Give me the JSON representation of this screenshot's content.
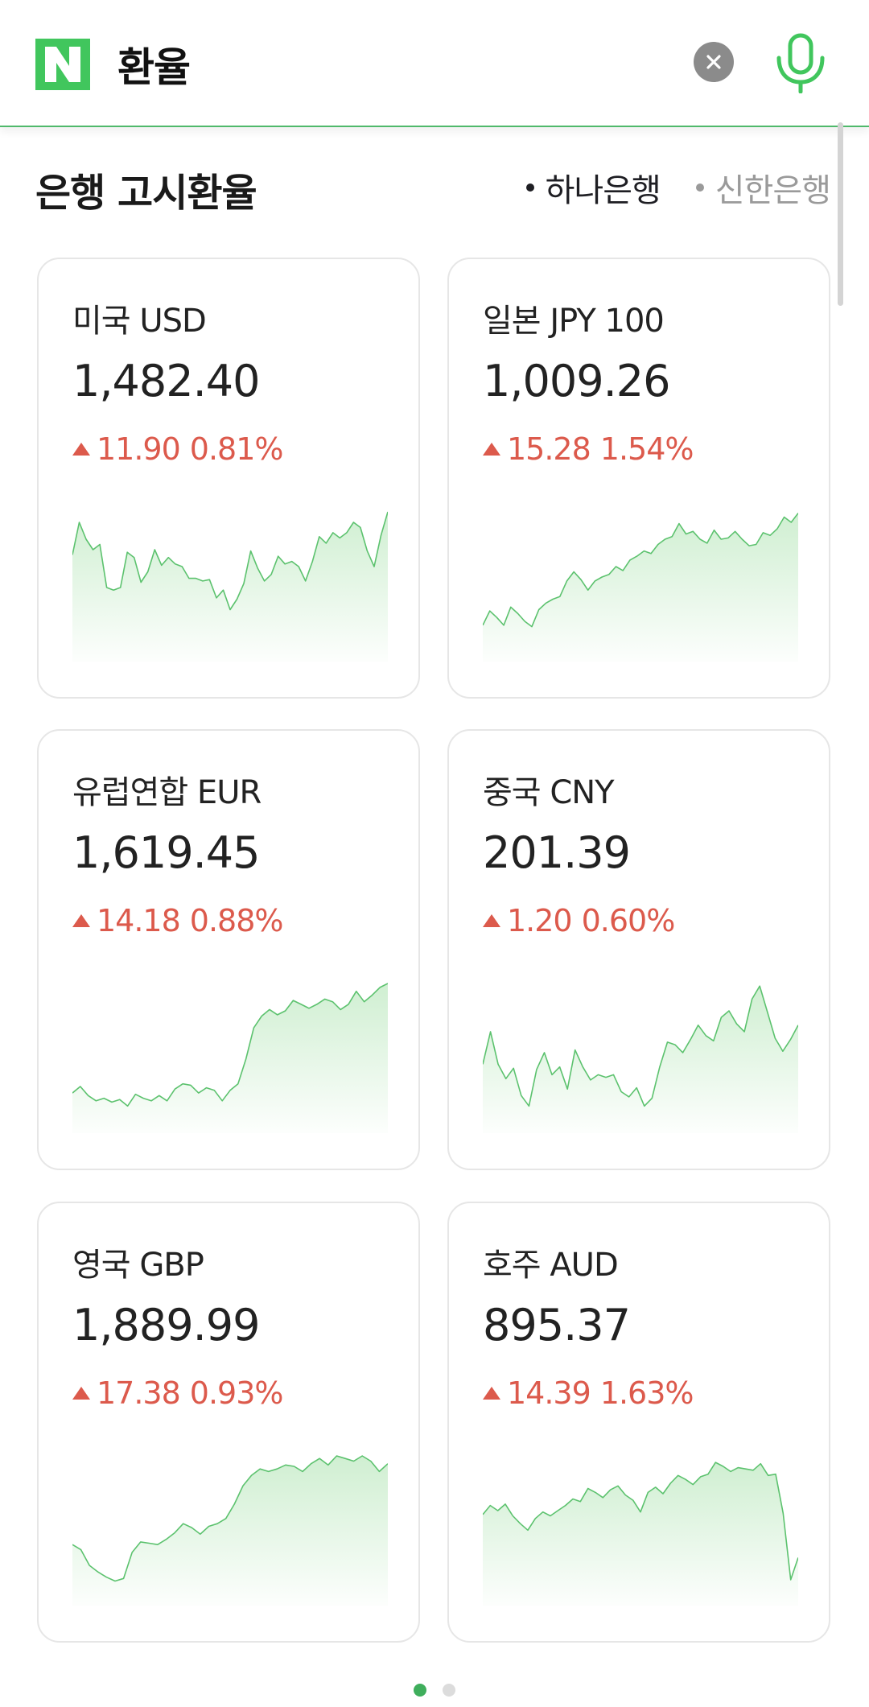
{
  "header": {
    "query": "환율",
    "logo_letter": "N",
    "brand_color": "#41c65d"
  },
  "section": {
    "title": "은행 고시환율",
    "banks": [
      {
        "label": "하나은행",
        "active": true
      },
      {
        "label": "신한은행",
        "active": false
      }
    ]
  },
  "colors": {
    "up": "#dc5a4c",
    "spark_line": "#5cc26e",
    "spark_fill": "#cdeecf"
  },
  "cards": [
    {
      "currency": "미국 USD",
      "rate": "1,482.40",
      "change": "11.90",
      "change_pct": "0.81%",
      "direction": "up",
      "trend": [
        0.67,
        0.92,
        0.79,
        0.71,
        0.75,
        0.42,
        0.4,
        0.42,
        0.69,
        0.65,
        0.46,
        0.54,
        0.71,
        0.59,
        0.65,
        0.6,
        0.58,
        0.49,
        0.49,
        0.47,
        0.48,
        0.34,
        0.4,
        0.25,
        0.33,
        0.45,
        0.7,
        0.57,
        0.47,
        0.52,
        0.66,
        0.6,
        0.62,
        0.58,
        0.47,
        0.62,
        0.81,
        0.76,
        0.84,
        0.8,
        0.84,
        0.92,
        0.88,
        0.7,
        0.58,
        0.82,
        1.0
      ]
    },
    {
      "currency": "일본 JPY 100",
      "rate": "1,009.26",
      "change": "15.28",
      "change_pct": "1.54%",
      "direction": "up",
      "trend": [
        0.13,
        0.24,
        0.19,
        0.13,
        0.27,
        0.22,
        0.16,
        0.12,
        0.25,
        0.3,
        0.33,
        0.35,
        0.47,
        0.54,
        0.48,
        0.4,
        0.47,
        0.5,
        0.52,
        0.58,
        0.55,
        0.63,
        0.66,
        0.7,
        0.68,
        0.75,
        0.79,
        0.81,
        0.91,
        0.83,
        0.85,
        0.79,
        0.76,
        0.86,
        0.79,
        0.8,
        0.85,
        0.79,
        0.74,
        0.75,
        0.84,
        0.82,
        0.87,
        0.96,
        0.92,
        0.99
      ]
    },
    {
      "currency": "유럽연합 EUR",
      "rate": "1,619.45",
      "change": "14.18",
      "change_pct": "0.88%",
      "direction": "up",
      "trend": [
        0.16,
        0.21,
        0.14,
        0.1,
        0.12,
        0.09,
        0.11,
        0.06,
        0.15,
        0.12,
        0.1,
        0.14,
        0.1,
        0.19,
        0.23,
        0.22,
        0.16,
        0.2,
        0.18,
        0.1,
        0.18,
        0.23,
        0.42,
        0.66,
        0.75,
        0.8,
        0.76,
        0.79,
        0.87,
        0.84,
        0.81,
        0.84,
        0.88,
        0.86,
        0.8,
        0.84,
        0.94,
        0.86,
        0.91,
        0.97,
        1.0
      ]
    },
    {
      "currency": "중국 CNY",
      "rate": "201.39",
      "change": "1.20",
      "change_pct": "0.60%",
      "direction": "up",
      "trend": [
        0.38,
        0.63,
        0.38,
        0.27,
        0.35,
        0.14,
        0.06,
        0.34,
        0.47,
        0.3,
        0.36,
        0.19,
        0.49,
        0.36,
        0.26,
        0.3,
        0.28,
        0.3,
        0.17,
        0.13,
        0.2,
        0.06,
        0.12,
        0.36,
        0.55,
        0.53,
        0.47,
        0.57,
        0.68,
        0.6,
        0.56,
        0.74,
        0.79,
        0.69,
        0.63,
        0.88,
        0.98,
        0.78,
        0.58,
        0.48,
        0.57,
        0.68
      ]
    },
    {
      "currency": "영국 GBP",
      "rate": "1,889.99",
      "change": "17.38",
      "change_pct": "0.93%",
      "direction": "up",
      "trend": [
        0.32,
        0.28,
        0.16,
        0.11,
        0.07,
        0.04,
        0.06,
        0.26,
        0.34,
        0.33,
        0.32,
        0.36,
        0.41,
        0.48,
        0.45,
        0.4,
        0.46,
        0.48,
        0.52,
        0.63,
        0.77,
        0.85,
        0.9,
        0.88,
        0.9,
        0.93,
        0.92,
        0.88,
        0.94,
        0.98,
        0.93,
        1.0,
        0.98,
        0.96,
        1.0,
        0.96,
        0.88,
        0.94
      ]
    },
    {
      "currency": "호주 AUD",
      "rate": "895.37",
      "change": "14.39",
      "change_pct": "1.63%",
      "direction": "up",
      "trend": [
        0.55,
        0.62,
        0.58,
        0.63,
        0.54,
        0.48,
        0.43,
        0.52,
        0.57,
        0.54,
        0.58,
        0.62,
        0.67,
        0.65,
        0.75,
        0.72,
        0.68,
        0.74,
        0.77,
        0.7,
        0.66,
        0.57,
        0.72,
        0.76,
        0.71,
        0.79,
        0.85,
        0.82,
        0.78,
        0.84,
        0.86,
        0.95,
        0.92,
        0.88,
        0.91,
        0.9,
        0.89,
        0.94,
        0.85,
        0.86,
        0.56,
        0.05,
        0.22
      ]
    }
  ],
  "pagination": {
    "pages": 2,
    "current": 0
  }
}
